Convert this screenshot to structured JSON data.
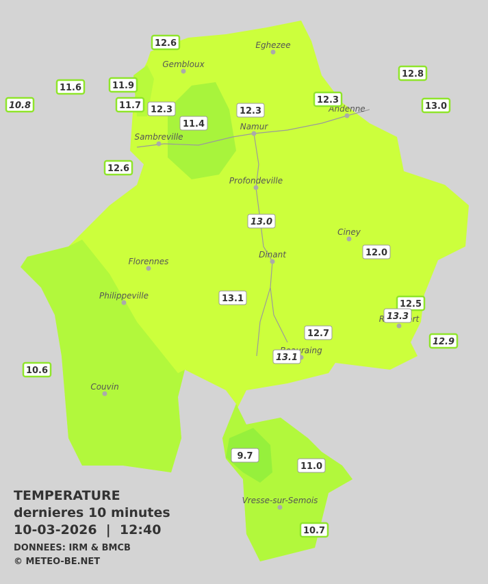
{
  "towns": [
    "Eghezee",
    "Gembloux",
    "Andenne",
    "Namur",
    "Sambreville",
    "Profondeville",
    "Ciney",
    "Dinant",
    "Florennes",
    "Philippeville",
    "Rochefort",
    "Beauraing",
    "Couvin",
    "Vresse-sur-Semois"
  ],
  "readings": [
    {
      "label": "12.6",
      "italic": false
    },
    {
      "label": "11.6",
      "italic": false
    },
    {
      "label": "11.9",
      "italic": false
    },
    {
      "label": "10.8",
      "italic": true
    },
    {
      "label": "11.7",
      "italic": false
    },
    {
      "label": "12.3",
      "italic": false
    },
    {
      "label": "11.4",
      "italic": false
    },
    {
      "label": "12.3",
      "italic": false
    },
    {
      "label": "12.3",
      "italic": false
    },
    {
      "label": "12.8",
      "italic": false
    },
    {
      "label": "13.0",
      "italic": false
    },
    {
      "label": "12.6",
      "italic": false
    },
    {
      "label": "13.0",
      "italic": true
    },
    {
      "label": "12.0",
      "italic": false
    },
    {
      "label": "13.1",
      "italic": false
    },
    {
      "label": "12.5",
      "italic": false
    },
    {
      "label": "13.3",
      "italic": true
    },
    {
      "label": "12.7",
      "italic": false
    },
    {
      "label": "12.9",
      "italic": true
    },
    {
      "label": "13.1",
      "italic": true
    },
    {
      "label": "10.6",
      "italic": false
    },
    {
      "label": "9.7",
      "italic": false
    },
    {
      "label": "11.0",
      "italic": false
    },
    {
      "label": "10.7",
      "italic": false
    }
  ],
  "legend": {
    "title": "TEMPERATURE",
    "subtitle": "dernieres 10 minutes",
    "datetime": "10-03-2026  |  12:40",
    "source": "DONNEES: IRM & BMCB",
    "copyright": "© METEO-BE.NET"
  }
}
